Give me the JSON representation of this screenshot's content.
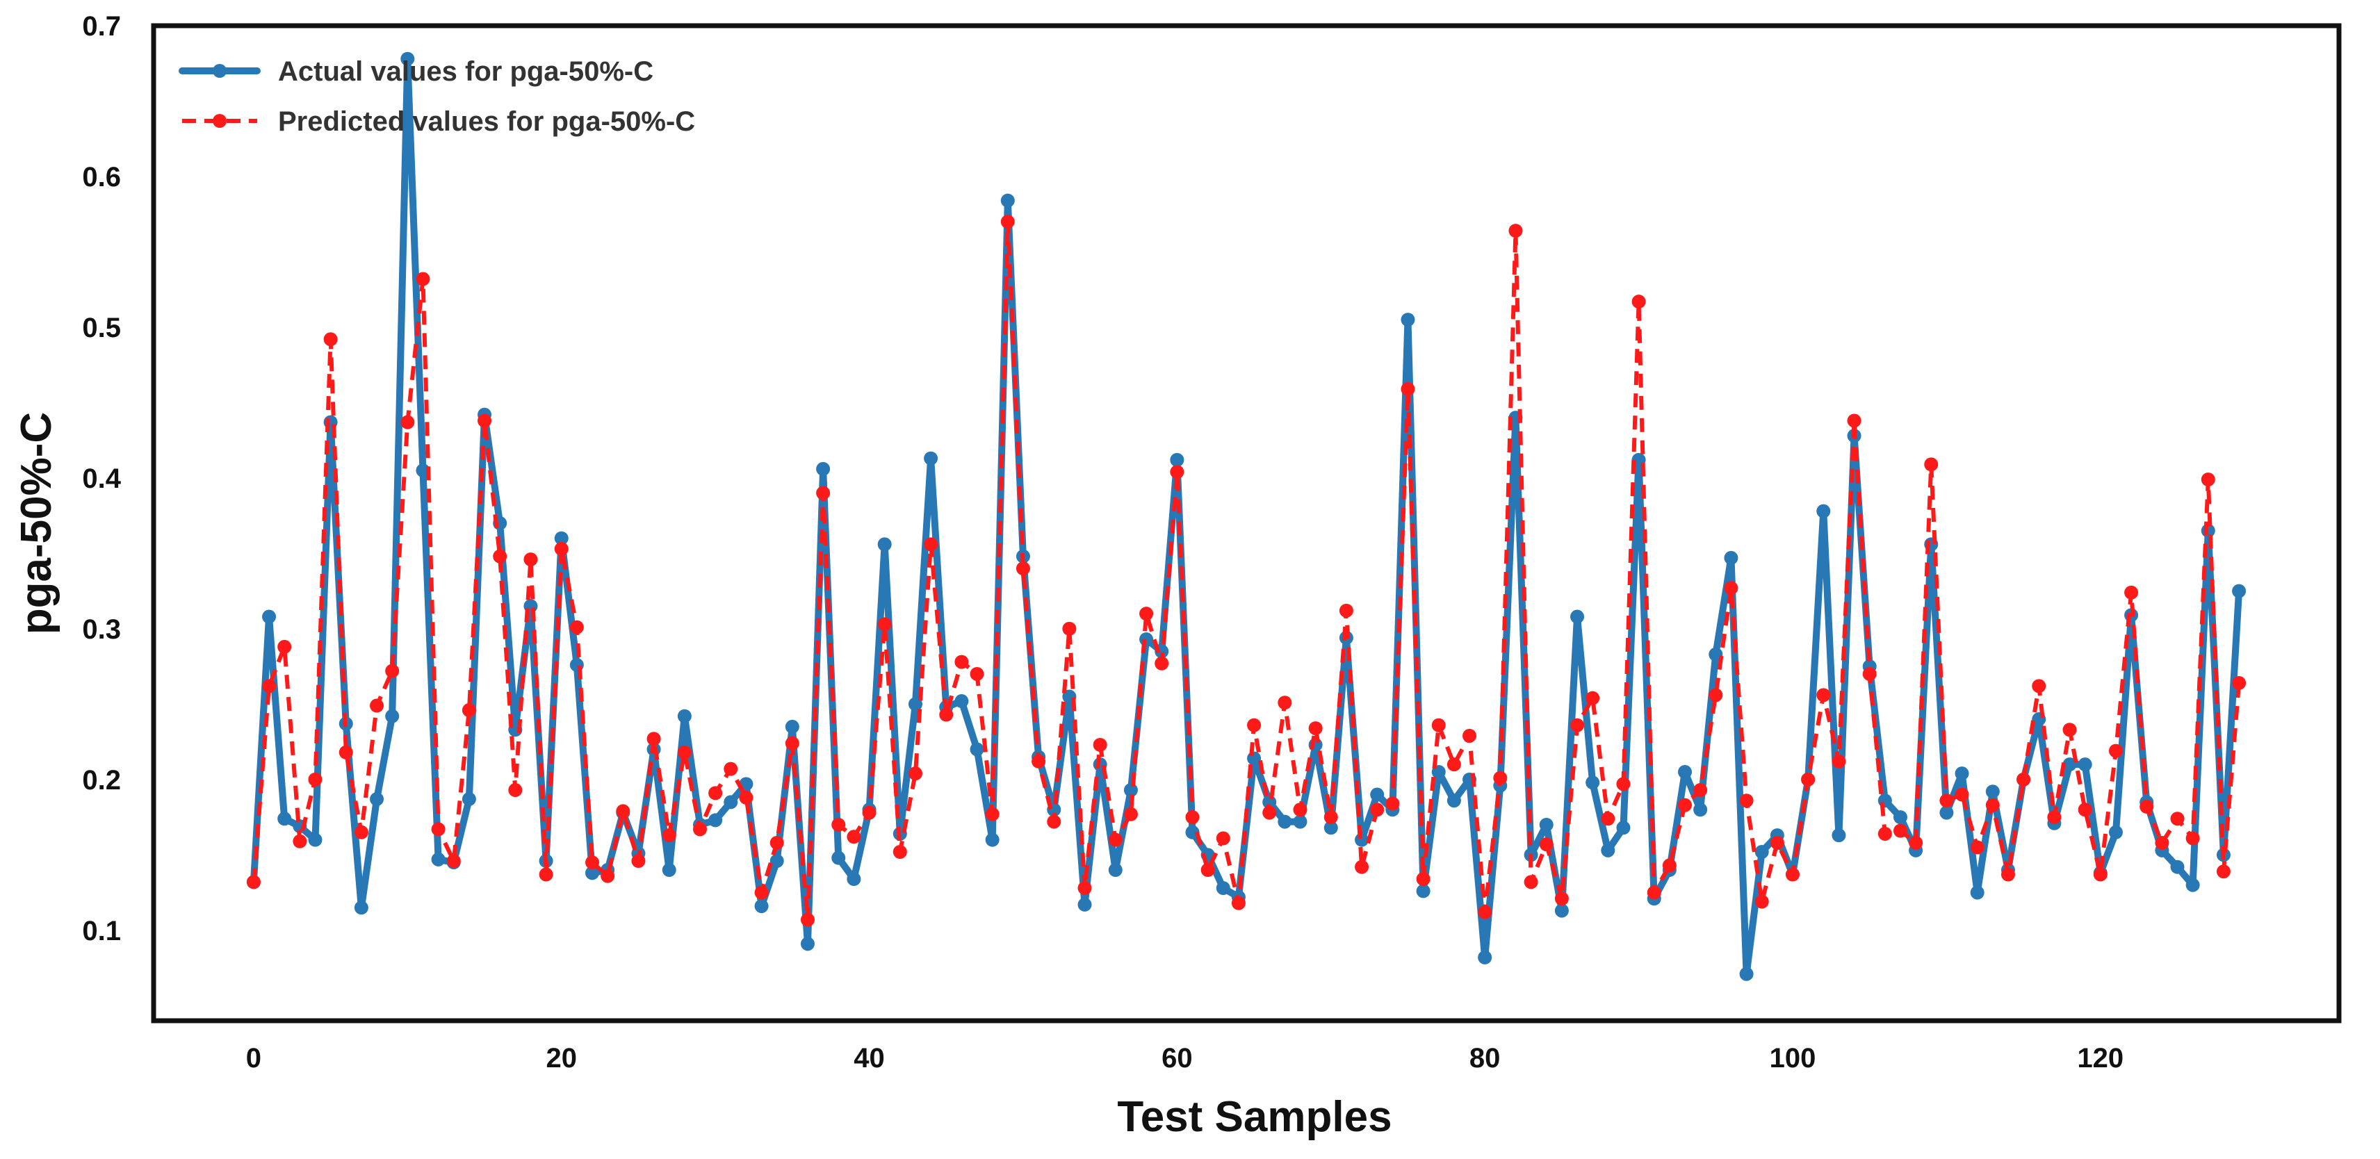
{
  "chart_data": {
    "type": "line",
    "title": "",
    "xlabel": "Test Samples",
    "ylabel": "pga-50%-C",
    "xlim": [
      -6.5,
      135.5
    ],
    "ylim": [
      0.04,
      0.7
    ],
    "xticks": [
      0,
      20,
      40,
      60,
      80,
      100,
      120
    ],
    "yticks": [
      0.1,
      0.2,
      0.3,
      0.4,
      0.5,
      0.6,
      0.7
    ],
    "grid": false,
    "legend_position": "top-left",
    "series": [
      {
        "name": "Actual values for pga-50%-C",
        "color": "#2878b5",
        "style": "solid",
        "marker": "circle",
        "values": [
          0.132,
          0.308,
          0.174,
          0.169,
          0.16,
          0.437,
          0.237,
          0.115,
          0.187,
          0.242,
          0.678,
          0.405,
          0.147,
          0.145,
          0.187,
          0.442,
          0.37,
          0.233,
          0.315,
          0.146,
          0.36,
          0.276,
          0.138,
          0.14,
          0.178,
          0.151,
          0.22,
          0.14,
          0.242,
          0.17,
          0.173,
          0.185,
          0.197,
          0.116,
          0.146,
          0.235,
          0.091,
          0.406,
          0.148,
          0.134,
          0.18,
          0.356,
          0.164,
          0.25,
          0.413,
          0.248,
          0.252,
          0.22,
          0.16,
          0.584,
          0.348,
          0.215,
          0.18,
          0.255,
          0.117,
          0.21,
          0.14,
          0.193,
          0.293,
          0.285,
          0.412,
          0.165,
          0.15,
          0.128,
          0.122,
          0.214,
          0.185,
          0.172,
          0.172,
          0.223,
          0.168,
          0.294,
          0.16,
          0.19,
          0.18,
          0.505,
          0.126,
          0.205,
          0.186,
          0.2,
          0.082,
          0.196,
          0.44,
          0.15,
          0.17,
          0.113,
          0.308,
          0.198,
          0.153,
          0.168,
          0.412,
          0.121,
          0.14,
          0.205,
          0.18,
          0.283,
          0.347,
          0.071,
          0.152,
          0.163,
          0.137,
          0.2,
          0.378,
          0.163,
          0.428,
          0.275,
          0.186,
          0.175,
          0.153,
          0.356,
          0.178,
          0.204,
          0.125,
          0.192,
          0.14,
          0.2,
          0.24,
          0.171,
          0.21,
          0.21,
          0.138,
          0.165,
          0.309,
          0.185,
          0.153,
          0.142,
          0.13,
          0.365,
          0.15,
          0.325
        ]
      },
      {
        "name": "Predicted values for pga-50%-C",
        "color": "#ff1a1a",
        "style": "dashed",
        "marker": "circle",
        "values": [
          0.132,
          0.262,
          0.288,
          0.159,
          0.2,
          0.492,
          0.218,
          0.165,
          0.249,
          0.272,
          0.437,
          0.532,
          0.167,
          0.146,
          0.246,
          0.438,
          0.348,
          0.193,
          0.346,
          0.137,
          0.353,
          0.301,
          0.145,
          0.136,
          0.179,
          0.146,
          0.227,
          0.163,
          0.218,
          0.167,
          0.191,
          0.207,
          0.188,
          0.125,
          0.158,
          0.224,
          0.107,
          0.39,
          0.17,
          0.162,
          0.178,
          0.303,
          0.152,
          0.204,
          0.356,
          0.243,
          0.278,
          0.27,
          0.177,
          0.57,
          0.34,
          0.212,
          0.172,
          0.3,
          0.128,
          0.223,
          0.16,
          0.177,
          0.31,
          0.277,
          0.404,
          0.175,
          0.14,
          0.161,
          0.118,
          0.236,
          0.178,
          0.251,
          0.18,
          0.234,
          0.175,
          0.312,
          0.142,
          0.18,
          0.184,
          0.459,
          0.134,
          0.236,
          0.21,
          0.229,
          0.112,
          0.201,
          0.564,
          0.132,
          0.157,
          0.121,
          0.236,
          0.254,
          0.174,
          0.197,
          0.517,
          0.125,
          0.143,
          0.183,
          0.193,
          0.256,
          0.327,
          0.186,
          0.119,
          0.158,
          0.137,
          0.2,
          0.256,
          0.212,
          0.438,
          0.27,
          0.164,
          0.166,
          0.158,
          0.409,
          0.186,
          0.19,
          0.155,
          0.183,
          0.137,
          0.2,
          0.262,
          0.175,
          0.233,
          0.18,
          0.137,
          0.219,
          0.324,
          0.182,
          0.158,
          0.174,
          0.161,
          0.399,
          0.139,
          0.264
        ]
      }
    ]
  }
}
